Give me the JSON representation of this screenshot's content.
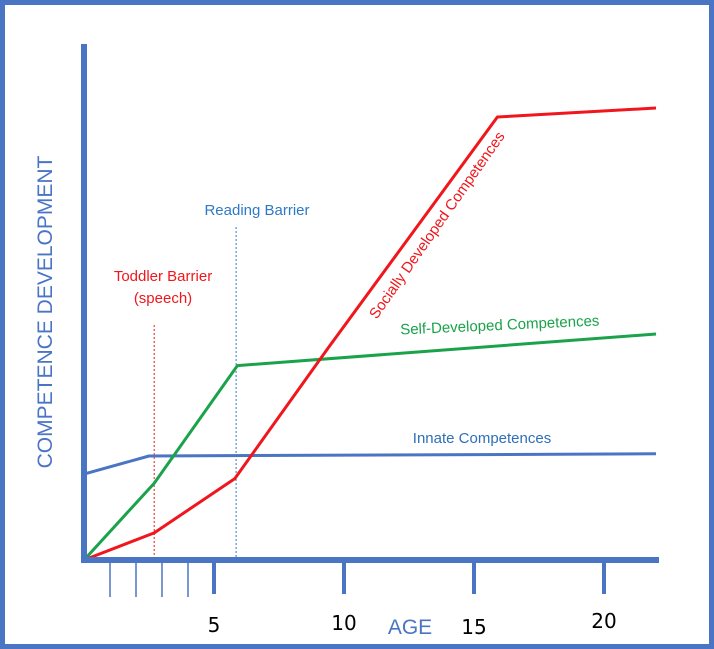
{
  "chart_data": {
    "type": "line",
    "ylabel": "COMPETENCE DEVELOPMENT",
    "xlabel": "AGE",
    "x_ticks": [
      5,
      10,
      15,
      20
    ],
    "xlim": [
      0,
      22
    ],
    "ylim": [
      0,
      100
    ],
    "series": [
      {
        "name": "Innate Competences",
        "color": "#4a74c4",
        "points": [
          [
            0,
            19
          ],
          [
            2.5,
            23
          ],
          [
            22,
            23.5
          ]
        ]
      },
      {
        "name": "Self-Developed Competences",
        "color": "#1aa34a",
        "points": [
          [
            0,
            0
          ],
          [
            2.7,
            17
          ],
          [
            5.9,
            43
          ],
          [
            22,
            50
          ]
        ]
      },
      {
        "name": "Socially Developed Competences",
        "color": "#f0161b",
        "points": [
          [
            0,
            0
          ],
          [
            2.7,
            6
          ],
          [
            5.8,
            18
          ],
          [
            9.4,
            47
          ],
          [
            15.9,
            98
          ],
          [
            22,
            100
          ]
        ]
      }
    ],
    "barriers": [
      {
        "label_lines": [
          "Toddler Barrier",
          "(speech)"
        ],
        "x": 2.7,
        "color": "#f0161b"
      },
      {
        "label_lines": [
          "Reading Barrier"
        ],
        "x": 5.85,
        "color": "#2e79c6"
      }
    ],
    "colors": {
      "axis": "#4a74c4",
      "frame": "#4a74c4"
    }
  }
}
